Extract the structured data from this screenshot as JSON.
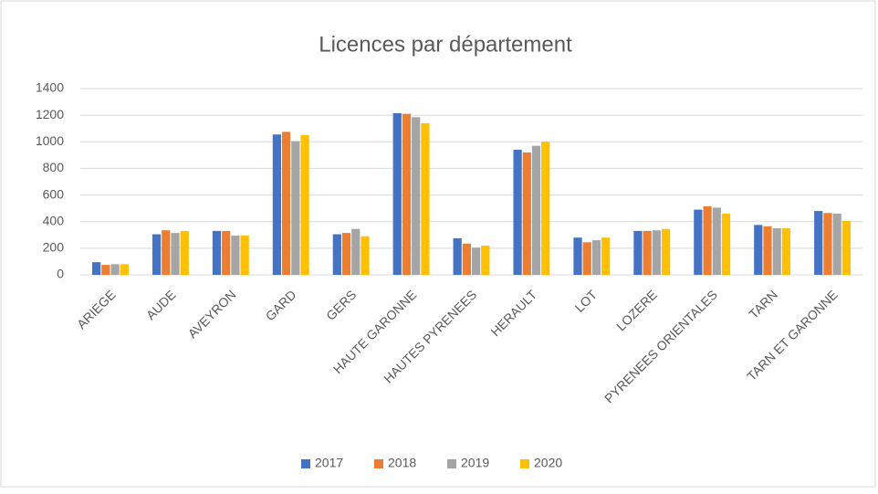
{
  "chart_data": {
    "type": "bar",
    "title": "Licences par département",
    "categories": [
      "ARIEGE",
      "AUDE",
      "AVEYRON",
      "GARD",
      "GERS",
      "HAUTE GARONNE",
      "HAUTES PYRENEES",
      "HERAULT",
      "LOT",
      "LOZERE",
      "PYRENEES ORIENTALES",
      "TARN",
      "TARN ET GARONNE"
    ],
    "series": [
      {
        "name": "2017",
        "color": "#4472c4",
        "values": [
          95,
          305,
          330,
          1055,
          305,
          1215,
          275,
          940,
          280,
          330,
          490,
          375,
          480
        ]
      },
      {
        "name": "2018",
        "color": "#ed7d31",
        "values": [
          75,
          335,
          330,
          1075,
          315,
          1210,
          235,
          920,
          245,
          330,
          515,
          365,
          465
        ]
      },
      {
        "name": "2019",
        "color": "#a5a5a5",
        "values": [
          80,
          315,
          295,
          1005,
          345,
          1185,
          205,
          970,
          260,
          335,
          505,
          350,
          460
        ]
      },
      {
        "name": "2020",
        "color": "#ffc000",
        "values": [
          80,
          330,
          295,
          1050,
          290,
          1140,
          220,
          1000,
          280,
          345,
          460,
          350,
          405
        ]
      }
    ],
    "ylim": [
      0,
      1400
    ],
    "yticks": [
      0,
      200,
      400,
      600,
      800,
      1000,
      1200,
      1400
    ],
    "grid": true,
    "legend": "bottom"
  }
}
